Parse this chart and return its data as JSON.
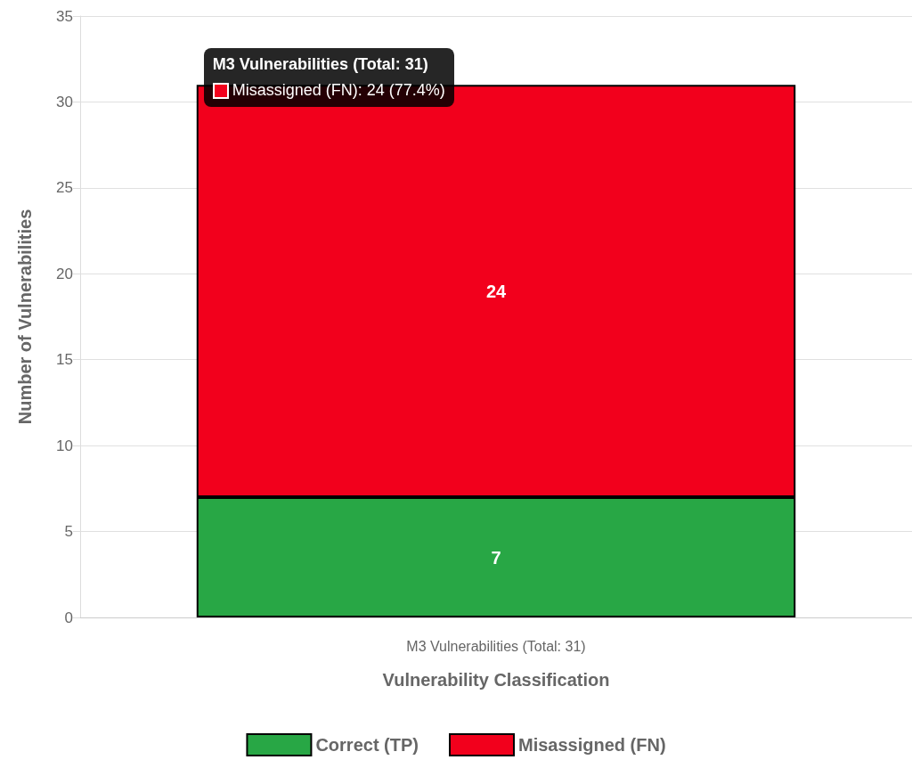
{
  "chart_data": {
    "type": "bar",
    "stacked": true,
    "xlabel": "Vulnerability Classification",
    "ylabel": "Number of Vulnerabilities",
    "categories": [
      "M3 Vulnerabilities (Total: 31)"
    ],
    "series": [
      {
        "name": "Correct (TP)",
        "color": "#28a745",
        "values": [
          7
        ]
      },
      {
        "name": "Misassigned (FN)",
        "color": "#f2001c",
        "values": [
          24
        ]
      }
    ],
    "ylim": [
      0,
      35
    ],
    "yticks": [
      0,
      5,
      10,
      15,
      20,
      25,
      30,
      35
    ],
    "grid": true,
    "legend": "bottom",
    "data_labels": true,
    "annotations": [
      "M3 Vulnerabilities (Total: 31)",
      "Misassigned (FN): 24 (77.4%)"
    ]
  }
}
